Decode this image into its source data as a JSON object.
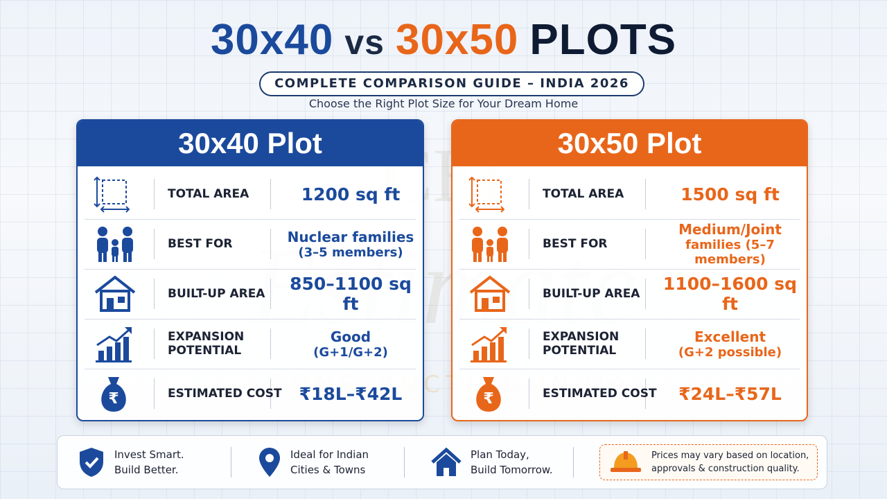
{
  "header": {
    "title_left": "30x40",
    "title_vs": "vs",
    "title_right": "30x50",
    "title_end": "PLOTS",
    "subtitle": "COMPLETE COMPARISON GUIDE – INDIA 2026",
    "tagline": "Choose the Right Plot Size for Your Dream Home"
  },
  "watermark": [
    "CEI",
    "Estimate",
    "CONSTRUCTION INDIA"
  ],
  "cards": [
    {
      "title": "30x40 Plot",
      "color": "#1b4a9c",
      "rows": [
        {
          "label": [
            "TOTAL AREA"
          ],
          "value": [
            "1200 sq ft"
          ]
        },
        {
          "label": [
            "BEST FOR"
          ],
          "value": [
            "Nuclear families",
            "(3–5 members)"
          ]
        },
        {
          "label": [
            "BUILT-UP AREA"
          ],
          "value": [
            "850–1100 sq ft"
          ]
        },
        {
          "label": [
            "EXPANSION",
            "POTENTIAL"
          ],
          "value": [
            "Good",
            "(G+1/G+2)"
          ]
        },
        {
          "label": [
            "ESTIMATED COST"
          ],
          "value": [
            "₹18L–₹42L"
          ]
        }
      ]
    },
    {
      "title": "30x50 Plot",
      "color": "#e8661a",
      "rows": [
        {
          "label": [
            "TOTAL AREA"
          ],
          "value": [
            "1500 sq ft"
          ]
        },
        {
          "label": [
            "BEST FOR"
          ],
          "value": [
            "Medium/Joint",
            "families (5–7 members)"
          ]
        },
        {
          "label": [
            "BUILT-UP AREA"
          ],
          "value": [
            "1100–1600 sq ft"
          ]
        },
        {
          "label": [
            "EXPANSION",
            "POTENTIAL"
          ],
          "value": [
            "Excellent",
            "(G+2 possible)"
          ]
        },
        {
          "label": [
            "ESTIMATED COST"
          ],
          "value": [
            "₹24L–₹57L"
          ]
        }
      ]
    }
  ],
  "footer": [
    {
      "lines": [
        "Invest Smart.",
        "Build Better."
      ]
    },
    {
      "lines": [
        "Ideal for Indian",
        "Cities & Towns"
      ]
    },
    {
      "lines": [
        "Plan Today,",
        "Build Tomorrow."
      ]
    },
    {
      "lines": [
        "Prices may vary based on location,",
        "approvals & construction quality."
      ]
    }
  ]
}
